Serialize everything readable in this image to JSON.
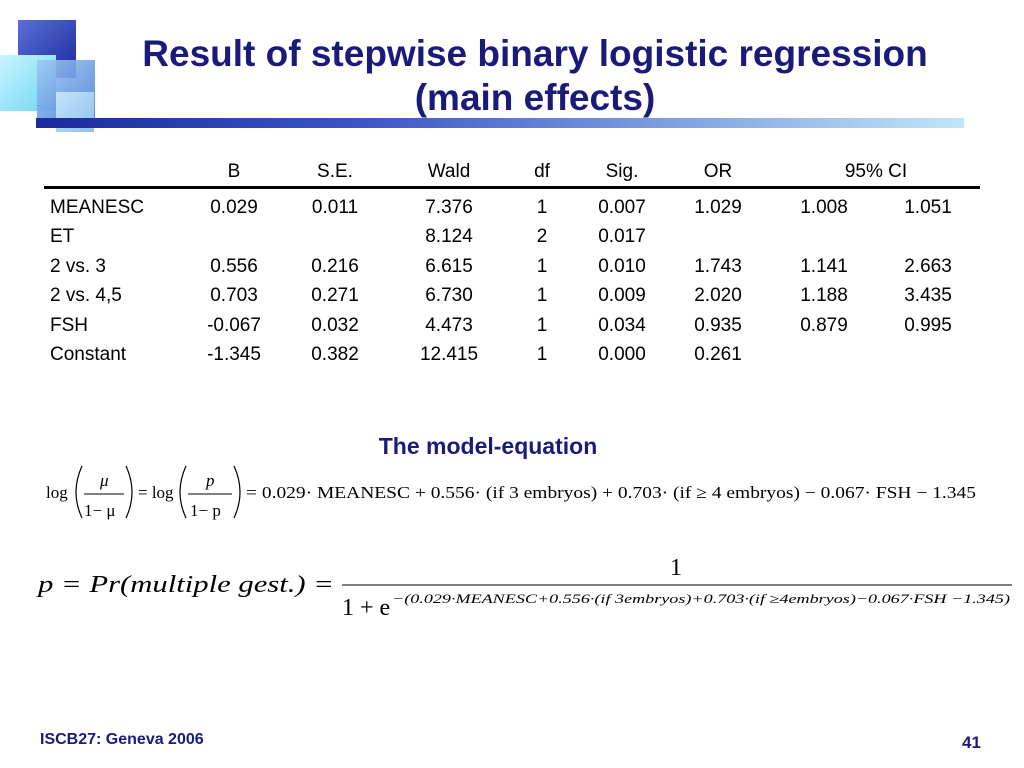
{
  "title": {
    "line1": "Result of stepwise binary logistic regression",
    "line2": "(main effects)"
  },
  "table": {
    "headers": [
      "",
      "B",
      "S.E.",
      "Wald",
      "df",
      "Sig.",
      "OR",
      "95% CI"
    ],
    "rows": [
      [
        "MEANESC",
        "0.029",
        "0.011",
        "7.376",
        "1",
        "0.007",
        "1.029",
        "1.008",
        "1.051"
      ],
      [
        "ET",
        "",
        "",
        "8.124",
        "2",
        "0.017",
        "",
        "",
        ""
      ],
      [
        "2 vs. 3",
        "0.556",
        "0.216",
        "6.615",
        "1",
        "0.010",
        "1.743",
        "1.141",
        "2.663"
      ],
      [
        "2 vs. 4,5",
        "0.703",
        "0.271",
        "6.730",
        "1",
        "0.009",
        "2.020",
        "1.188",
        "3.435"
      ],
      [
        "FSH",
        "-0.067",
        "0.032",
        "4.473",
        "1",
        "0.034",
        "0.935",
        "0.879",
        "0.995"
      ],
      [
        "Constant",
        "-1.345",
        "0.382",
        "12.415",
        "1",
        "0.000",
        "0.261",
        "",
        ""
      ]
    ]
  },
  "subtitle": "The model-equation",
  "equation1": {
    "log1": "log",
    "mu": "μ",
    "one_minus_mu": "1− μ",
    "eq_a": "= log",
    "p": "p",
    "one_minus_p": "1− p",
    "rhs": "= 0.029· MEANESC + 0.556· (if 3 embryos) + 0.703· (if ≥ 4 embryos) − 0.067· FSH − 1.345"
  },
  "equation2": {
    "lhs": "p = Pr(multiple  gest.) =",
    "numerator": "1",
    "denominator_base": "1 + e",
    "exponent": "−(0.029·MEANESC+0.556·(if 3embryos)+0.703·(if ≥4embryos)−0.067·FSH −1.345)"
  },
  "footer": {
    "left": "ISCB27: Geneva 2006",
    "page": "41"
  }
}
